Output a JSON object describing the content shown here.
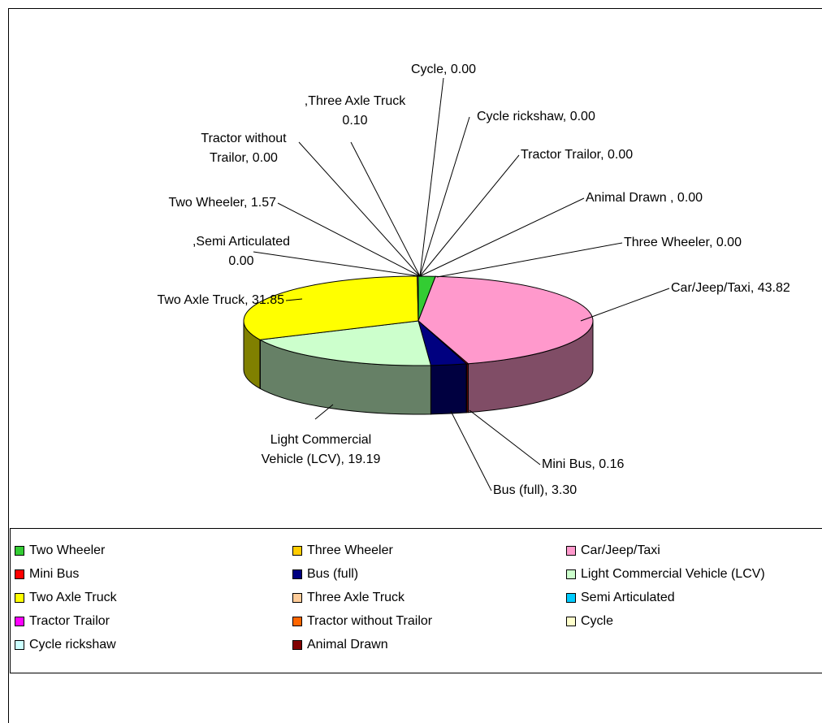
{
  "chart_data": {
    "type": "pie",
    "categories": [
      "Two Wheeler",
      "Three Wheeler",
      "Car/Jeep/Taxi",
      "Mini Bus",
      "Bus (full)",
      "Light Commercial Vehicle (LCV)",
      "Two Axle Truck",
      "Three Axle Truck",
      "Semi Articulated",
      "Tractor Trailor",
      "Tractor without Trailor",
      "Cycle",
      "Cycle rickshaw",
      "Animal Drawn"
    ],
    "values": [
      1.57,
      0.0,
      43.82,
      0.16,
      3.3,
      19.19,
      31.85,
      0.1,
      0.0,
      0.0,
      0.0,
      0.0,
      0.0,
      0.0
    ],
    "value_labels": [
      [
        "Two Wheeler, 1.57"
      ],
      [
        "Three Wheeler, 0.00"
      ],
      [
        "Car/Jeep/Taxi, 43.82"
      ],
      [
        "Mini Bus, 0.16"
      ],
      [
        "Bus (full), 3.30"
      ],
      [
        "Light Commercial",
        "Vehicle (LCV), 19.19"
      ],
      [
        "Two Axle Truck, 31.85"
      ],
      [
        ",Three Axle Truck",
        "0.10"
      ],
      [
        ",Semi Articulated",
        "0.00"
      ],
      [
        "Tractor Trailor, 0.00"
      ],
      [
        "Tractor without",
        "Trailor, 0.00"
      ],
      [
        "Cycle, 0.00"
      ],
      [
        "Cycle rickshaw, 0.00"
      ],
      [
        "Animal Drawn , 0.00"
      ]
    ],
    "colors": [
      "#33cc33",
      "#ffcc00",
      "#ff99cc",
      "#ff0000",
      "#000080",
      "#ccffcc",
      "#ffff00",
      "#ffcc99",
      "#00ccff",
      "#ff00ff",
      "#ff6600",
      "#ffffcc",
      "#ccffff",
      "#800000"
    ],
    "legend": "bottom"
  }
}
